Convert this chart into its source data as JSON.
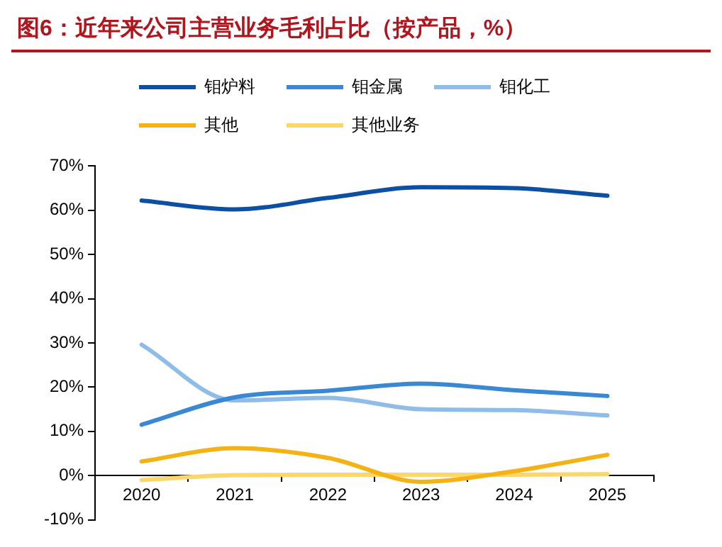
{
  "chart_data": {
    "type": "line",
    "title": "图6：近年来公司主营业务毛利占比（按产品，%）",
    "categories": [
      "2020",
      "2021",
      "2022",
      "2023",
      "2024",
      "2025"
    ],
    "series": [
      {
        "name": "钼炉料",
        "color": "#0d4fa3",
        "values": [
          62.2,
          60.2,
          62.8,
          65.2,
          65.0,
          63.3
        ]
      },
      {
        "name": "钼金属",
        "color": "#3a87d4",
        "values": [
          11.5,
          17.7,
          19.2,
          20.8,
          19.3,
          18.0
        ]
      },
      {
        "name": "钼化工",
        "color": "#8fbde8",
        "values": [
          29.6,
          17.0,
          17.6,
          15.0,
          14.8,
          13.6
        ]
      },
      {
        "name": "其他",
        "color": "#f5b214",
        "values": [
          3.2,
          6.2,
          4.0,
          -1.4,
          1.0,
          4.7
        ]
      },
      {
        "name": "其他业务",
        "color": "#fbd66a",
        "values": [
          -1.0,
          0.1,
          0.2,
          0.2,
          0.2,
          0.3
        ]
      }
    ],
    "ylim": [
      -10,
      70
    ],
    "yticks": [
      {
        "value": -10,
        "label": "-10%"
      },
      {
        "value": 0,
        "label": "0%"
      },
      {
        "value": 10,
        "label": "10%"
      },
      {
        "value": 20,
        "label": "20%"
      },
      {
        "value": 30,
        "label": "30%"
      },
      {
        "value": 40,
        "label": "40%"
      },
      {
        "value": 50,
        "label": "50%"
      },
      {
        "value": 60,
        "label": "60%"
      },
      {
        "value": 70,
        "label": "70%"
      }
    ],
    "grid": false,
    "legend": "top",
    "marker": "none",
    "line_style": "solid"
  }
}
